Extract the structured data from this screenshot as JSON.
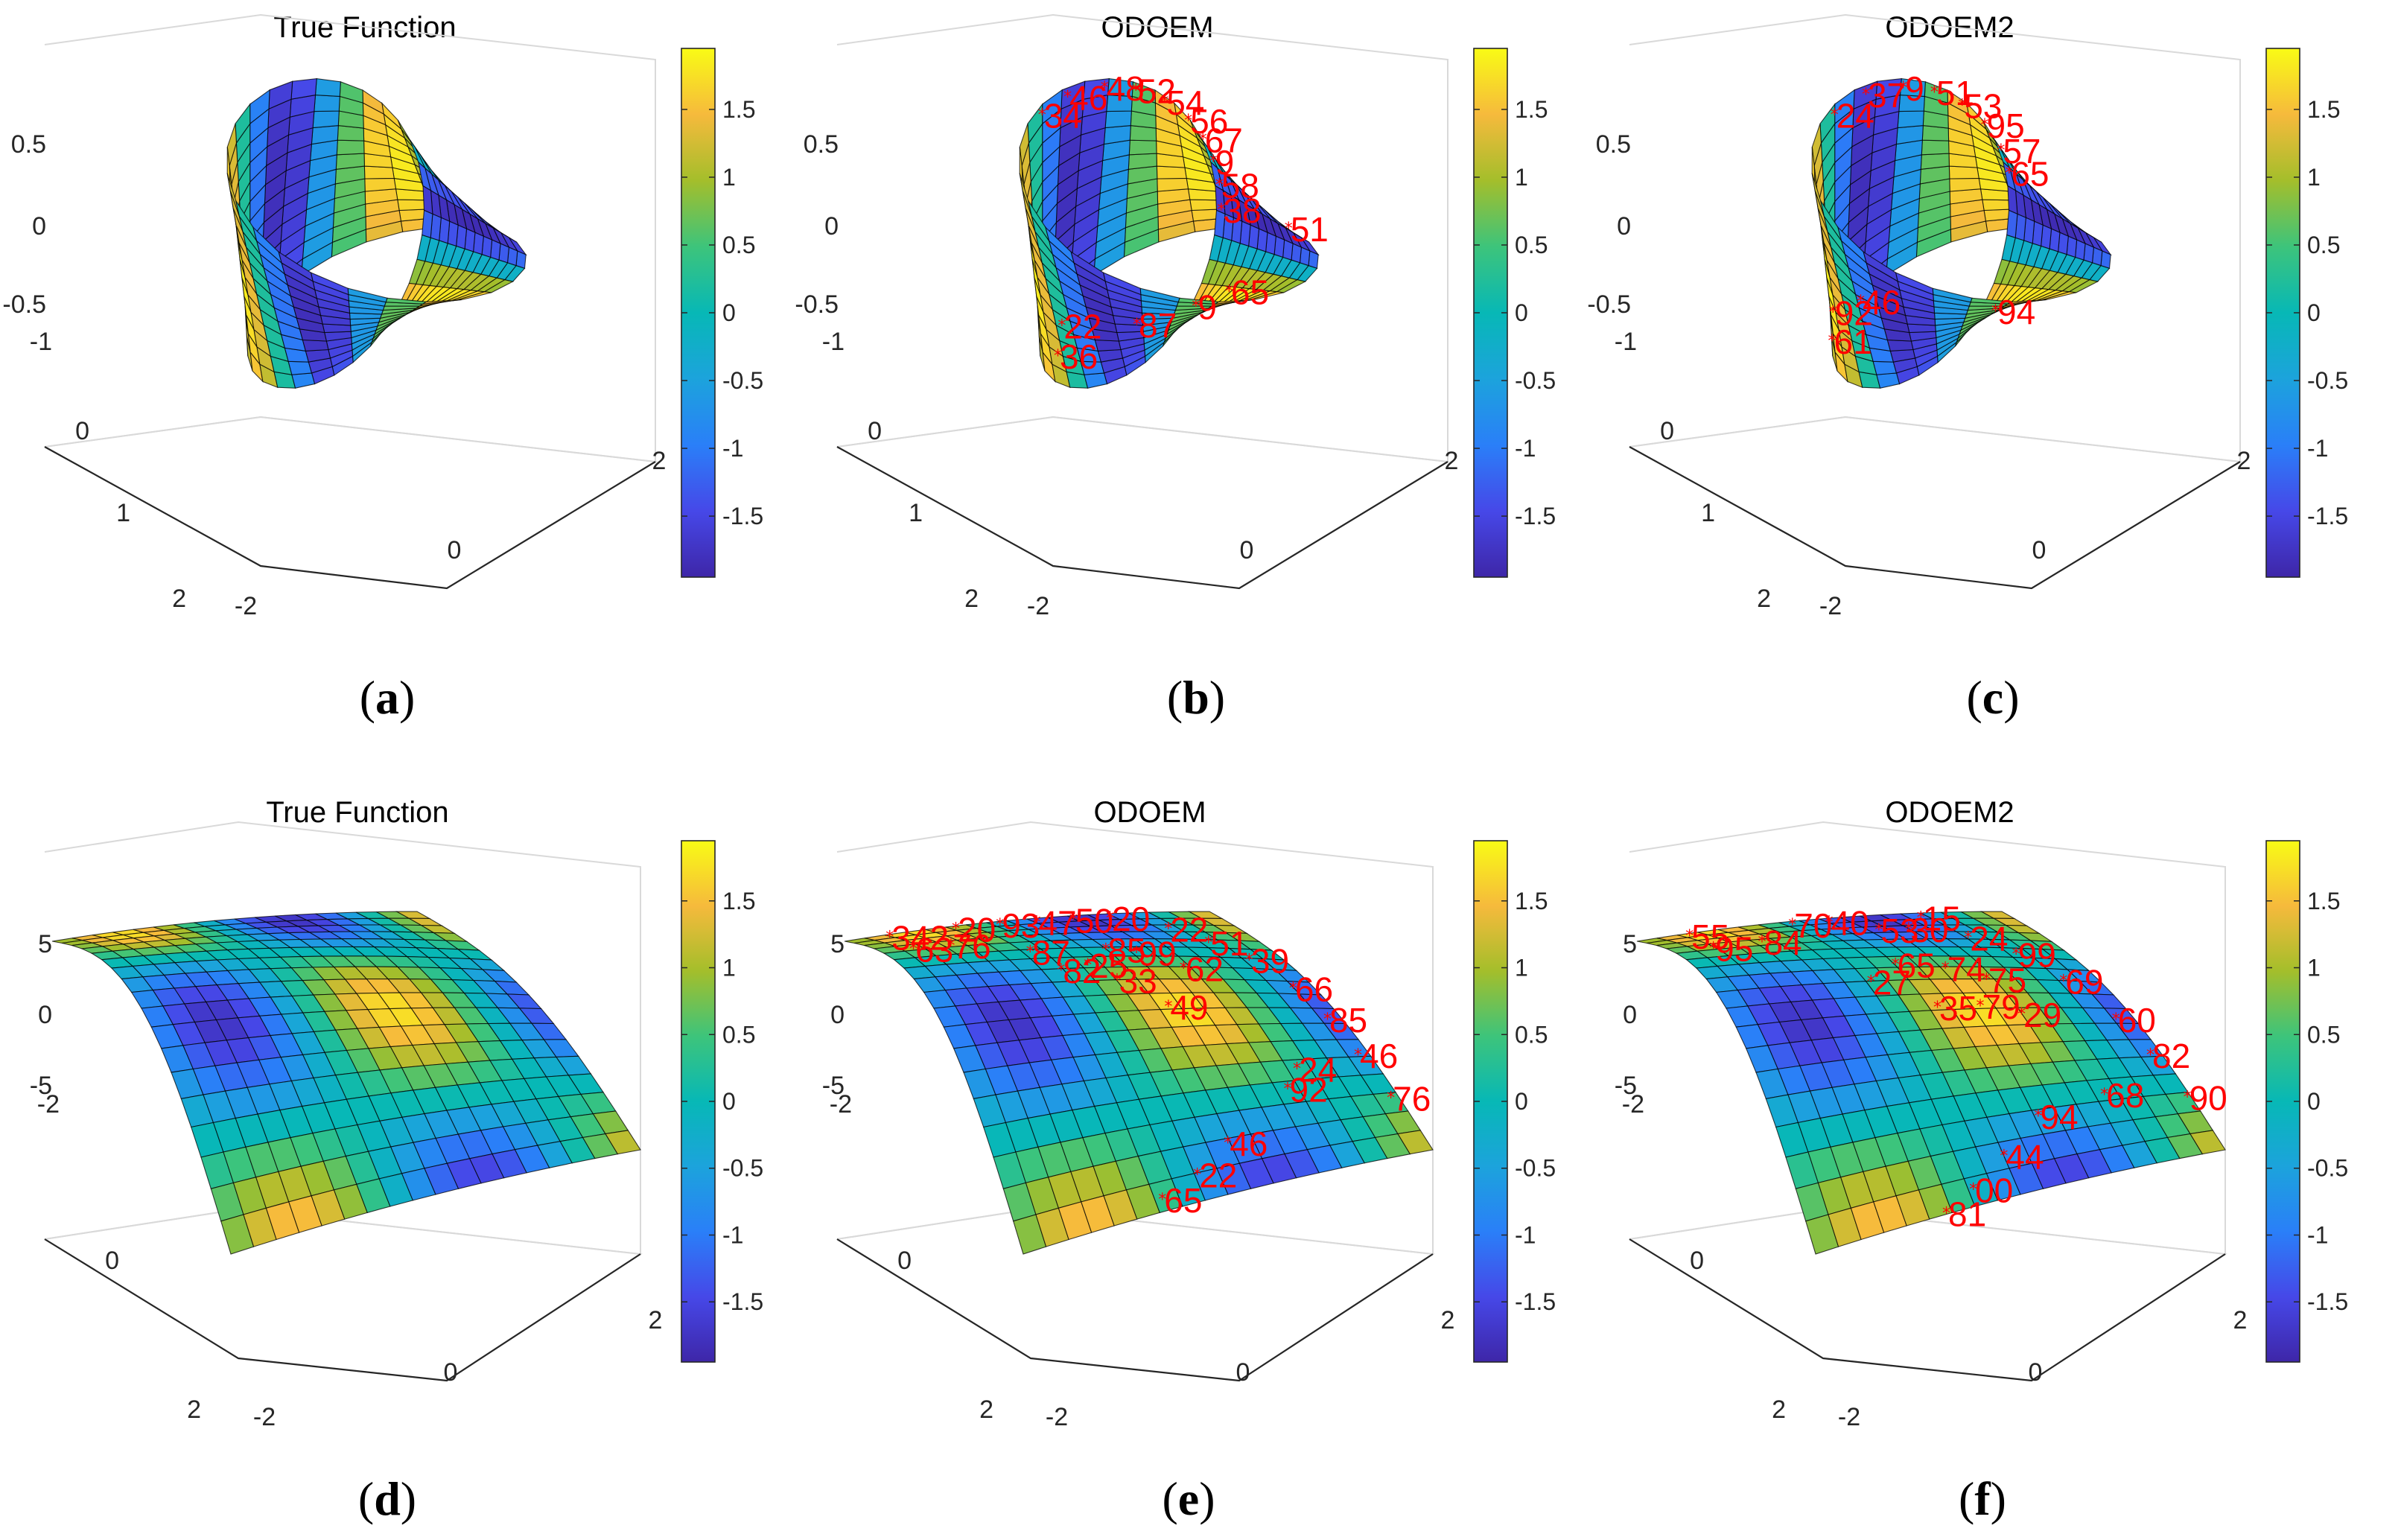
{
  "chart_data": [
    {
      "id": "a",
      "type": "surface3d",
      "shape": "mobius",
      "title": "True Function",
      "sublabel": "a",
      "z_ticks": [
        "0.5",
        "0",
        "-0.5"
      ],
      "y_ticks": [
        "-1",
        "0",
        "1",
        "2"
      ],
      "x_ticks": [
        "-2",
        "0",
        "2"
      ],
      "colorbar": {
        "ticks": [
          "1.5",
          "1",
          "0.5",
          "0",
          "-0.5",
          "-1",
          "-1.5"
        ],
        "range": [
          -1.95,
          1.95
        ]
      },
      "marks": []
    },
    {
      "id": "b",
      "type": "surface3d",
      "shape": "mobius",
      "title": "ODOEM",
      "sublabel": "b",
      "z_ticks": [
        "0.5",
        "0",
        "-0.5"
      ],
      "y_ticks": [
        "-1",
        "0",
        "1",
        "2"
      ],
      "x_ticks": [
        "-2",
        "0",
        "2"
      ],
      "colorbar": {
        "ticks": [
          "1.5",
          "1",
          "0.5",
          "0",
          "-0.5",
          "-1",
          "-1.5"
        ],
        "range": [
          -1.95,
          1.95
        ]
      },
      "marks": [
        {
          "label": "34",
          "u": 0.5,
          "v": 0.95
        },
        {
          "label": "46",
          "u": 0.55,
          "v": 0.95
        },
        {
          "label": "48",
          "u": 0.61,
          "v": 0.95
        },
        {
          "label": "52",
          "u": 0.66,
          "v": 0.95
        },
        {
          "label": "54",
          "u": 0.71,
          "v": 0.95
        },
        {
          "label": "56",
          "u": 0.76,
          "v": 0.95
        },
        {
          "label": "67",
          "u": 0.8,
          "v": 0.95
        },
        {
          "label": "9",
          "u": 0.84,
          "v": 0.95
        },
        {
          "label": "58",
          "u": 0.88,
          "v": 0.95
        },
        {
          "label": "38",
          "u": 0.92,
          "v": 0.95
        },
        {
          "label": "36",
          "u": 0.36,
          "v": 0.15
        },
        {
          "label": "22",
          "u": 0.33,
          "v": 0.35
        },
        {
          "label": "9",
          "u": 0.08,
          "v": 0.1
        },
        {
          "label": "65",
          "u": 0.05,
          "v": 0.4
        },
        {
          "label": "51",
          "u": 0.88,
          "v": 0.2
        },
        {
          "label": "87",
          "u": 0.2,
          "v": 0.5
        }
      ]
    },
    {
      "id": "c",
      "type": "surface3d",
      "shape": "mobius",
      "title": "ODOEM2",
      "sublabel": "c",
      "z_ticks": [
        "0.5",
        "0",
        "-0.5"
      ],
      "y_ticks": [
        "-1",
        "0",
        "1",
        "2"
      ],
      "x_ticks": [
        "-2",
        "0",
        "2"
      ],
      "colorbar": {
        "ticks": [
          "1.5",
          "1",
          "0.5",
          "0",
          "-0.5",
          "-1",
          "-1.5"
        ],
        "range": [
          -1.95,
          1.95
        ]
      },
      "marks": [
        {
          "label": "24",
          "u": 0.5,
          "v": 0.95
        },
        {
          "label": "37",
          "u": 0.56,
          "v": 0.95
        },
        {
          "label": "9",
          "u": 0.62,
          "v": 0.95
        },
        {
          "label": "51",
          "u": 0.67,
          "v": 0.95
        },
        {
          "label": "53",
          "u": 0.72,
          "v": 0.95
        },
        {
          "label": "95",
          "u": 0.77,
          "v": 0.95
        },
        {
          "label": "57",
          "u": 0.82,
          "v": 0.95
        },
        {
          "label": "65",
          "u": 0.86,
          "v": 0.95
        },
        {
          "label": "61",
          "u": 0.44,
          "v": 0.1
        },
        {
          "label": "92",
          "u": 0.4,
          "v": 0.3
        },
        {
          "label": "94",
          "u": 0.1,
          "v": 0.4
        },
        {
          "label": "46",
          "u": 0.3,
          "v": 0.55
        }
      ]
    },
    {
      "id": "d",
      "type": "surface3d",
      "shape": "saddle",
      "title": "True Function",
      "sublabel": "d",
      "z_ticks": [
        "5",
        "0",
        "-5"
      ],
      "y_ticks": [
        "-2",
        "0",
        "2"
      ],
      "x_ticks": [
        "-2",
        "0",
        "2"
      ],
      "colorbar": {
        "ticks": [
          "1.5",
          "1",
          "0.5",
          "0",
          "-0.5",
          "-1",
          "-1.5"
        ],
        "range": [
          -1.95,
          1.95
        ]
      },
      "marks": []
    },
    {
      "id": "e",
      "type": "surface3d",
      "shape": "saddle",
      "title": "ODOEM",
      "sublabel": "e",
      "z_ticks": [
        "5",
        "0",
        "-5"
      ],
      "y_ticks": [
        "-2",
        "0",
        "2"
      ],
      "x_ticks": [
        "-2",
        "0",
        "2"
      ],
      "colorbar": {
        "ticks": [
          "1.5",
          "1",
          "0.5",
          "0",
          "-0.5",
          "-1",
          "-1.5"
        ],
        "range": [
          -1.95,
          1.95
        ]
      },
      "marks": [
        {
          "label": "342",
          "u": 0.1,
          "v": 0.05
        },
        {
          "label": "20",
          "u": 0.28,
          "v": 0.05
        },
        {
          "label": "93",
          "u": 0.4,
          "v": 0.05
        },
        {
          "label": "47",
          "u": 0.5,
          "v": 0.05
        },
        {
          "label": "50",
          "u": 0.6,
          "v": 0.05
        },
        {
          "label": "20",
          "u": 0.7,
          "v": 0.05
        },
        {
          "label": "63",
          "u": 0.08,
          "v": 0.22
        },
        {
          "label": "76",
          "u": 0.18,
          "v": 0.22
        },
        {
          "label": "22",
          "u": 0.8,
          "v": 0.15
        },
        {
          "label": "51",
          "u": 0.85,
          "v": 0.25
        },
        {
          "label": "39",
          "u": 0.9,
          "v": 0.35
        },
        {
          "label": "66",
          "u": 0.94,
          "v": 0.48
        },
        {
          "label": "85",
          "u": 0.96,
          "v": 0.6
        },
        {
          "label": "46",
          "u": 0.97,
          "v": 0.72
        },
        {
          "label": "76",
          "u": 0.98,
          "v": 0.85
        },
        {
          "label": "92",
          "u": 0.75,
          "v": 0.8
        },
        {
          "label": "46",
          "u": 0.55,
          "v": 0.9
        },
        {
          "label": "22",
          "u": 0.45,
          "v": 0.95
        },
        {
          "label": "65",
          "u": 0.35,
          "v": 0.98
        },
        {
          "label": "33",
          "u": 0.5,
          "v": 0.45
        },
        {
          "label": "85",
          "u": 0.55,
          "v": 0.3
        },
        {
          "label": "99",
          "u": 0.62,
          "v": 0.32
        },
        {
          "label": "62",
          "u": 0.7,
          "v": 0.4
        },
        {
          "label": "49",
          "u": 0.58,
          "v": 0.55
        },
        {
          "label": "82",
          "u": 0.38,
          "v": 0.4
        },
        {
          "label": "25",
          "u": 0.46,
          "v": 0.38
        },
        {
          "label": "87",
          "u": 0.35,
          "v": 0.3
        },
        {
          "label": "24",
          "u": 0.8,
          "v": 0.75
        }
      ]
    },
    {
      "id": "f",
      "type": "surface3d",
      "shape": "saddle",
      "title": "ODOEM2",
      "sublabel": "f",
      "z_ticks": [
        "5",
        "0",
        "-5"
      ],
      "y_ticks": [
        "-2",
        "0",
        "2"
      ],
      "x_ticks": [
        "-2",
        "0",
        "2"
      ],
      "colorbar": {
        "ticks": [
          "1.5",
          "1",
          "0.5",
          "0",
          "-0.5",
          "-1",
          "-1.5"
        ],
        "range": [
          -1.95,
          1.95
        ]
      },
      "marks": [
        {
          "label": "55",
          "u": 0.12,
          "v": 0.05
        },
        {
          "label": "70",
          "u": 0.4,
          "v": 0.05
        },
        {
          "label": "40",
          "u": 0.5,
          "v": 0.05
        },
        {
          "label": "15",
          "u": 0.75,
          "v": 0.05
        },
        {
          "label": "95",
          "u": 0.1,
          "v": 0.22
        },
        {
          "label": "84",
          "u": 0.24,
          "v": 0.2
        },
        {
          "label": "53",
          "u": 0.58,
          "v": 0.15
        },
        {
          "label": "30",
          "u": 0.66,
          "v": 0.15
        },
        {
          "label": "24",
          "u": 0.78,
          "v": 0.22
        },
        {
          "label": "99",
          "u": 0.85,
          "v": 0.32
        },
        {
          "label": "69",
          "u": 0.9,
          "v": 0.45
        },
        {
          "label": "60",
          "u": 0.95,
          "v": 0.6
        },
        {
          "label": "82",
          "u": 0.97,
          "v": 0.72
        },
        {
          "label": "90",
          "u": 0.99,
          "v": 0.85
        },
        {
          "label": "68",
          "u": 0.8,
          "v": 0.82
        },
        {
          "label": "94",
          "u": 0.62,
          "v": 0.85
        },
        {
          "label": "44",
          "u": 0.5,
          "v": 0.92
        },
        {
          "label": "00",
          "u": 0.4,
          "v": 0.97
        },
        {
          "label": "81",
          "u": 0.32,
          "v": 1.0
        },
        {
          "label": "65",
          "u": 0.5,
          "v": 0.38
        },
        {
          "label": "74",
          "u": 0.62,
          "v": 0.4
        },
        {
          "label": "75",
          "u": 0.7,
          "v": 0.45
        },
        {
          "label": "27",
          "u": 0.4,
          "v": 0.45
        },
        {
          "label": "35",
          "u": 0.52,
          "v": 0.55
        },
        {
          "label": "79",
          "u": 0.63,
          "v": 0.55
        },
        {
          "label": "29",
          "u": 0.72,
          "v": 0.58
        }
      ]
    }
  ]
}
